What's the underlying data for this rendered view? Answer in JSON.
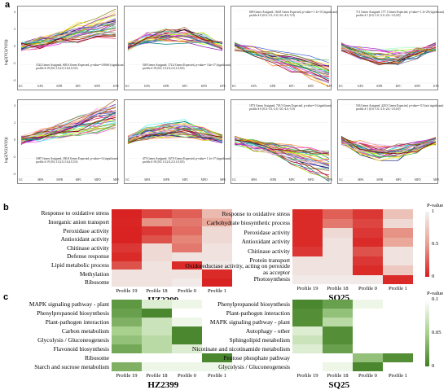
{
  "panel_a": {
    "letter": "a",
    "y_axis_label": "log2(V(i)/V(0))",
    "rows": [
      {
        "x_ticks": [
          "KC",
          "KPA",
          "KPB",
          "KPC",
          "KPD",
          "KPE"
        ],
        "y_ticks": [
          "4",
          "2",
          "0",
          "-2",
          "-4"
        ],
        "panels": [
          {
            "annotation_line1": "1522 Genes Assigned, 605.6 Genes Expected, p-value= 0.00e0 (significant)",
            "annotation_line2": "profile # 19 (0.0,1.0,2.0,3.0,4.0,5.0)",
            "color": "#8a2be2",
            "shape": "up"
          },
          {
            "annotation_line1": "549 Genes Assigned, 172.4 Genes Expected, p-value= 3.4e-17 (significant)",
            "annotation_line2": "profile # 18 (0.0,1.0,2.0,2.0,1.0,0.0)",
            "color": "#c8102e",
            "shape": "hump"
          },
          {
            "annotation_line1": "669 Genes Assigned, 164.8 Genes Expected, p-value= 1.1e-15 (significant)",
            "annotation_line2": "profile # 0 (0.0,-1.0,-2.0,-3.0,-4.0,-5.0)",
            "color": "#1e90ff",
            "shape": "down"
          },
          {
            "annotation_line1": "711 Genes Assigned, 177.1 Genes Expected, p-value= 1.1e-29 (significant)",
            "annotation_line2": "profile # 1 (0.0,-1.0,-2.0,-2.0,-1.0,0.0)",
            "color": "#00ced1",
            "shape": "valley"
          }
        ]
      },
      {
        "x_ticks": [
          "GC",
          "MPA",
          "MPB",
          "MPC",
          "MPD",
          "MPE"
        ],
        "y_ticks": [
          "4",
          "2",
          "0",
          "-2",
          "-4"
        ],
        "panels": [
          {
            "annotation_line1": "1087 Genes Assigned, 350.8 Genes Expected, p-value= 0 (significant)",
            "annotation_line2": "profile # 19 (0.0,1.0,2.0,3.0,4.0,5.0)",
            "color": "#8a2be2",
            "shape": "up"
          },
          {
            "annotation_line1": "475 Genes Assigned, 167.8 Genes Expected, p-value= 1.1e-17 (significant)",
            "annotation_line2": "profile # 18 (0.0,1.0,2.0,2.0,1.0,0.0)",
            "color": "#c8102e",
            "shape": "hump"
          },
          {
            "annotation_line1": "1873 Genes Assigned, 718.5 Genes Expected, p-value= 0 (significant)",
            "annotation_line2": "profile # 0 (0.0,-1.0,-2.0,-3.0,-4.0,-5.0)",
            "color": "#1e90ff",
            "shape": "down"
          },
          {
            "annotation_line1": "536 Genes Assigned, 420.5 Genes Expected, p-value= 0.5 (not significant)",
            "annotation_line2": "profile # 1 (0.0,-1.0,-2.0,-2.0,-1.0,0.0)",
            "color": "#00ced1",
            "shape": "valley"
          }
        ]
      }
    ]
  },
  "panel_b": {
    "letter": "b",
    "scale_title": "P-value",
    "scale_ticks": [
      "1",
      "0.5",
      "0"
    ],
    "scale_colors": [
      "#f2f2f2",
      "#e8a090",
      "#d81e1e"
    ],
    "columns": [
      "Profile 19",
      "Profile 18",
      "Profile 0",
      "Profile 1"
    ],
    "left": {
      "title": "HZ2399",
      "rows": [
        {
          "label": "Response to oxidative stress",
          "values": [
            0.02,
            0.15,
            0.25,
            0.65
          ]
        },
        {
          "label": "Inorganic anion transport",
          "values": [
            0.03,
            0.45,
            0.35,
            0.55
          ]
        },
        {
          "label": "Peroxidase activity",
          "values": [
            0.02,
            0.1,
            0.3,
            0.85
          ]
        },
        {
          "label": "Antioxidant activity",
          "values": [
            0.02,
            0.2,
            0.4,
            0.85
          ]
        },
        {
          "label": "Chitinase activity",
          "values": [
            0.1,
            0.85,
            0.35,
            0.9
          ]
        },
        {
          "label": "Defense response",
          "values": [
            0.05,
            0.85,
            0.9,
            0.9
          ]
        },
        {
          "label": "Lipid metabolic process",
          "values": [
            0.2,
            0.9,
            0.05,
            0.95
          ]
        },
        {
          "label": "Methylation",
          "values": [
            0.9,
            0.9,
            0.9,
            0.05
          ]
        },
        {
          "label": "Ribosome",
          "values": [
            0.9,
            0.9,
            0.95,
            0.02
          ]
        }
      ]
    },
    "right": {
      "title": "SQ25",
      "rows": [
        {
          "label": "Response to oxidative stress",
          "values": [
            0.05,
            0.25,
            0.1,
            0.7
          ]
        },
        {
          "label": "Carbohydrate biosynthetic process",
          "values": [
            0.05,
            0.35,
            0.15,
            0.85
          ]
        },
        {
          "label": "Peroxidase activity",
          "values": [
            0.05,
            0.85,
            0.1,
            0.45
          ]
        },
        {
          "label": "Antioxidant activity",
          "values": [
            0.05,
            0.9,
            0.05,
            0.55
          ]
        },
        {
          "label": "Chitinase activity",
          "values": [
            0.1,
            0.9,
            0.2,
            0.9
          ]
        },
        {
          "label": "Protein transport",
          "values": [
            0.9,
            0.9,
            0.1,
            0.9
          ]
        },
        {
          "label": "Oxidoreductase activity, acting on peroxide as acceptor",
          "values": [
            0.9,
            0.9,
            0.05,
            0.75
          ]
        },
        {
          "label": "Photosynthesis",
          "values": [
            0.95,
            0.95,
            0.95,
            0.05
          ]
        }
      ]
    }
  },
  "panel_c": {
    "letter": "c",
    "scale_title": "P-value",
    "scale_ticks": [
      "0.1",
      "0.05",
      "0"
    ],
    "scale_colors": [
      "#ffffff",
      "#a9d18e",
      "#3f7f23"
    ],
    "columns": [
      "Profile 19",
      "Profile 18",
      "Profile 0",
      "Profile 1"
    ],
    "left": {
      "title": "HZ2399",
      "rows": [
        {
          "label": "MAPK signaling pathway - plant",
          "values": [
            0.015,
            0.08,
            0.09,
            0.1
          ]
        },
        {
          "label": "Phenylpropanoid biosynthesis",
          "values": [
            0.02,
            0.005,
            0.1,
            0.1
          ]
        },
        {
          "label": "Plant-pathogen interaction",
          "values": [
            0.03,
            0.07,
            0.09,
            0.1
          ]
        },
        {
          "label": "Carbon metabolism",
          "values": [
            0.05,
            0.07,
            0.005,
            0.1
          ]
        },
        {
          "label": "Glycolysis / Gluconeogenesis",
          "values": [
            0.04,
            0.06,
            0.005,
            0.1
          ]
        },
        {
          "label": "Flavonoid biosynthesis",
          "values": [
            0.025,
            0.06,
            0.08,
            0.1
          ]
        },
        {
          "label": "Ribosome",
          "values": [
            0.1,
            0.1,
            0.1,
            0.005
          ]
        },
        {
          "label": "Starch and sucrose metabolism",
          "values": [
            0.03,
            0.09,
            0.09,
            0.09
          ]
        }
      ]
    },
    "right": {
      "title": "SQ25",
      "rows": [
        {
          "label": "Phenylpropanoid biosynthesis",
          "values": [
            0.005,
            0.02,
            0.09,
            0.1
          ]
        },
        {
          "label": "Plant-pathogen interaction",
          "values": [
            0.01,
            0.04,
            0.1,
            0.1
          ]
        },
        {
          "label": "MAPK signaling pathway - plant",
          "values": [
            0.01,
            0.06,
            0.1,
            0.1
          ]
        },
        {
          "label": "Autophagy - other",
          "values": [
            0.08,
            0.01,
            0.1,
            0.1
          ]
        },
        {
          "label": "Sphingolipid metabolism",
          "values": [
            0.07,
            0.01,
            0.1,
            0.1
          ]
        },
        {
          "label": "Nicotinate and nicotinamide metabolism",
          "values": [
            0.08,
            0.02,
            0.1,
            0.1
          ]
        },
        {
          "label": "Pentose phosphate pathway",
          "values": [
            0.1,
            0.1,
            0.04,
            0.01
          ]
        },
        {
          "label": "Glycolysis / Gluconeogenesis",
          "values": [
            0.1,
            0.09,
            0.005,
            0.1
          ]
        }
      ]
    }
  }
}
